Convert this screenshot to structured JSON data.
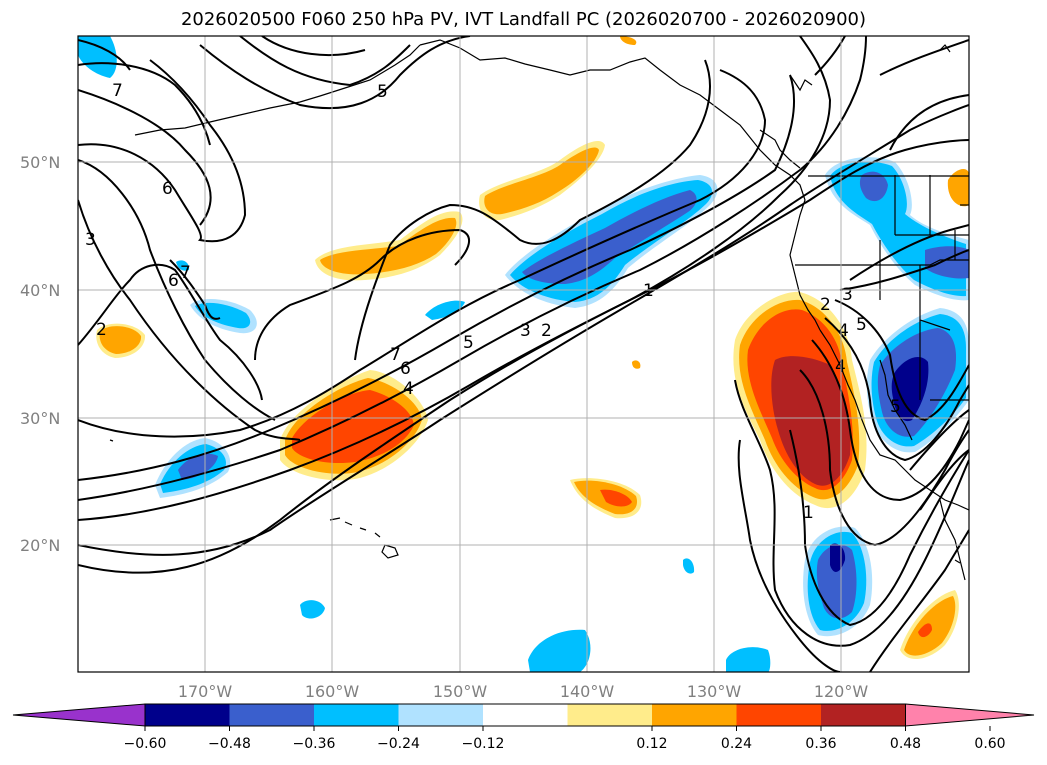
{
  "title": "2026020500 F060 250 hPa PV, IVT Landfall PC (2026020700 - 2026020900)",
  "map": {
    "lat_labels": [
      "50°N",
      "40°N",
      "30°N",
      "20°N"
    ],
    "lon_labels": [
      "170°W",
      "160°W",
      "150°W",
      "140°W",
      "130°W",
      "120°W"
    ],
    "lon_range": [
      -180,
      -110
    ],
    "lat_range": [
      10,
      60
    ],
    "grid": true,
    "projection": "PlateCarree",
    "contour_labels": [
      "7",
      "5",
      "6",
      "3",
      "7",
      "6",
      "2",
      "7",
      "6",
      "5",
      "4",
      "3",
      "2",
      "1",
      "2",
      "3",
      "4",
      "5",
      "4",
      "5",
      "1"
    ]
  },
  "colorbar": {
    "ticks": [
      "−0.60",
      "−0.48",
      "−0.36",
      "−0.24",
      "−0.12",
      "0.12",
      "0.24",
      "0.36",
      "0.48",
      "0.60"
    ],
    "colors": [
      "#9932cc",
      "#00008b",
      "#3a5fcd",
      "#00bfff",
      "#b0e2ff",
      "#ffffff",
      "#ffec8b",
      "#ffa500",
      "#ff4500",
      "#b22222",
      "#ff82ab"
    ],
    "extend": "both"
  }
}
